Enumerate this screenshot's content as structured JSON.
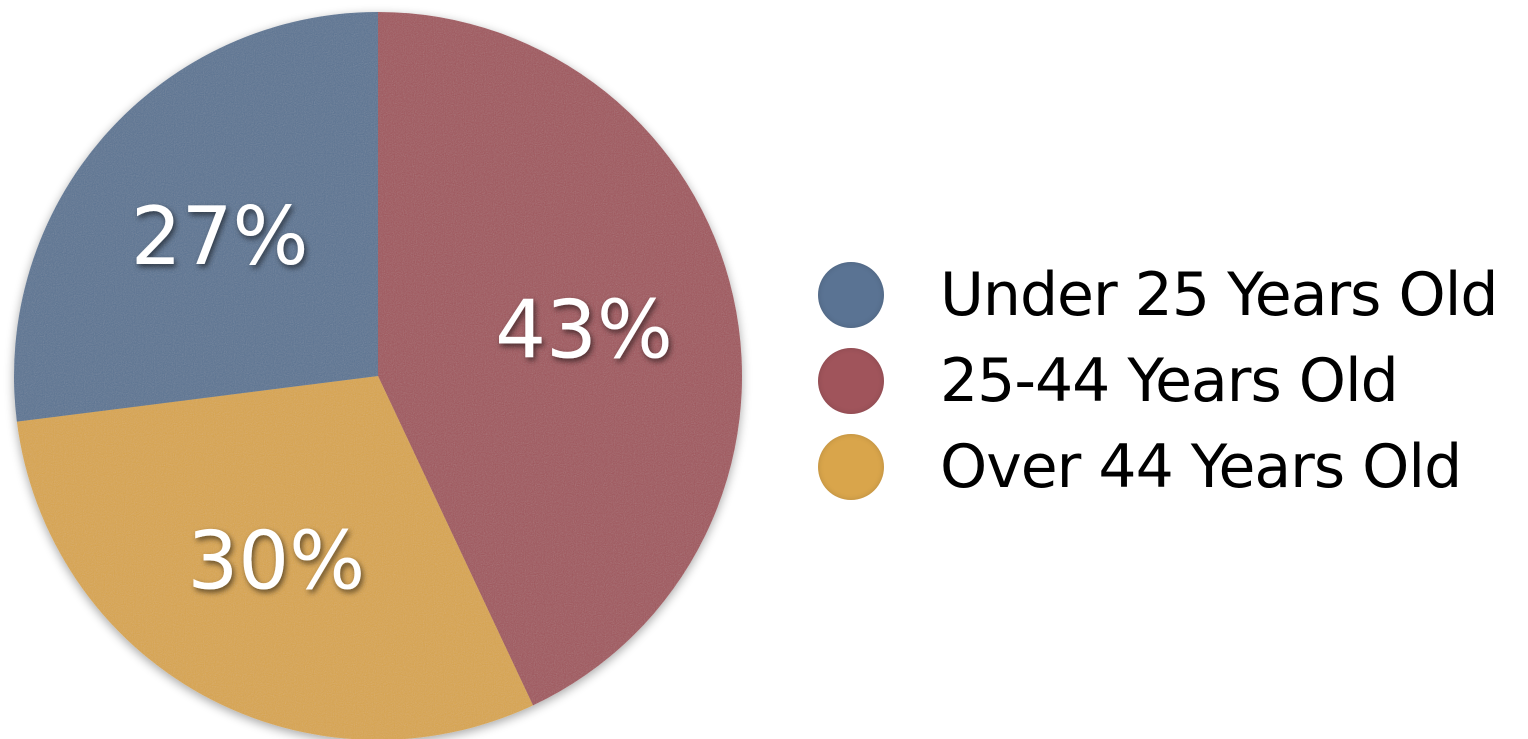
{
  "chart_data": {
    "type": "pie",
    "title": "",
    "slices": [
      {
        "label": "25-44 Years Old",
        "value": 43,
        "display": "43%",
        "color": "#a0545b"
      },
      {
        "label": "Over 44 Years Old",
        "value": 30,
        "display": "30%",
        "color": "#d9a54b"
      },
      {
        "label": "Under 25 Years Old",
        "value": 27,
        "display": "27%",
        "color": "#5a7393"
      }
    ],
    "start_angle_deg": 0,
    "direction": "clockwise",
    "legend_placement": "right",
    "legend": [
      {
        "label": "Under 25 Years Old",
        "color": "#5a7393"
      },
      {
        "label": "25-44 Years Old",
        "color": "#a0545b"
      },
      {
        "label": "Over 44 Years Old",
        "color": "#d9a54b"
      }
    ]
  }
}
